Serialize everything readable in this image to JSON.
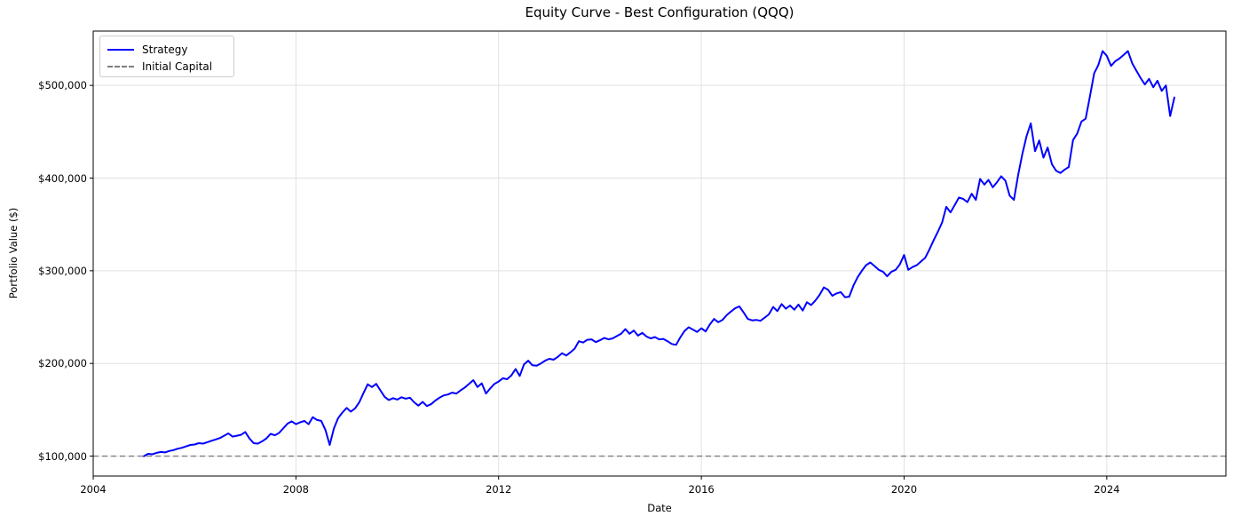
{
  "figure_title": "Equity Curve - Best Configuration (QQQ)",
  "colors": {
    "strategy_line": "#0000ff",
    "initial_capital_line": "#7f7f7f",
    "grid": "#e1e1e1",
    "spine": "#000000",
    "background": "#ffffff",
    "text": "#000000"
  },
  "chart_data": {
    "type": "line",
    "title": "Equity Curve - Best Configuration (QQQ)",
    "xlabel": "Date",
    "ylabel": "Portfolio Value ($)",
    "xlim": [
      2004.0,
      2026.35
    ],
    "ylim": [
      78500,
      558600
    ],
    "grid": true,
    "legend": {
      "position": "upper left",
      "entries": [
        {
          "label": "Strategy",
          "color": "#0000ff",
          "style": "solid"
        },
        {
          "label": "Initial Capital",
          "color": "#7f7f7f",
          "style": "dashed"
        }
      ]
    },
    "xticks": {
      "values": [
        2004,
        2008,
        2012,
        2016,
        2020,
        2024
      ],
      "labels": [
        "2004",
        "2008",
        "2012",
        "2016",
        "2020",
        "2024"
      ]
    },
    "yticks": {
      "values": [
        100000,
        200000,
        300000,
        400000,
        500000
      ],
      "labels": [
        "$100,000",
        "$200,000",
        "$300,000",
        "$400,000",
        "$500,000"
      ]
    },
    "initial_capital": 100000,
    "series": [
      {
        "name": "Strategy",
        "color": "#0000ff",
        "x_start_year": 2005.0,
        "x_step_years": 0.0833333,
        "values_usd": [
          100000,
          102500,
          102000,
          103500,
          104500,
          104000,
          105500,
          106500,
          108000,
          109000,
          110500,
          112000,
          112500,
          114000,
          113500,
          115000,
          116500,
          118000,
          119500,
          122000,
          124500,
          121000,
          122000,
          123000,
          126000,
          119000,
          114000,
          113500,
          116000,
          119000,
          124000,
          122500,
          125000,
          130000,
          135000,
          137500,
          134500,
          136500,
          138000,
          134500,
          142000,
          139000,
          138000,
          128000,
          112000,
          130000,
          141000,
          147000,
          152000,
          148000,
          151500,
          158000,
          168000,
          177500,
          174500,
          178000,
          171000,
          164000,
          160500,
          162500,
          161000,
          163500,
          162000,
          163000,
          158000,
          154500,
          158500,
          154000,
          156000,
          160000,
          163000,
          165500,
          166500,
          168500,
          167500,
          171000,
          174000,
          178000,
          182000,
          174500,
          178500,
          167500,
          173000,
          178000,
          180500,
          184000,
          183000,
          187000,
          194000,
          186500,
          199000,
          203000,
          198000,
          197500,
          200000,
          203000,
          205000,
          204000,
          207000,
          211000,
          208500,
          212000,
          216000,
          224000,
          222500,
          225500,
          226000,
          223000,
          225000,
          227500,
          226000,
          227000,
          229500,
          232000,
          237000,
          232000,
          235500,
          230000,
          233000,
          229000,
          227000,
          228500,
          226000,
          226500,
          224000,
          221000,
          220000,
          228000,
          235000,
          239000,
          236500,
          234000,
          238000,
          234500,
          242000,
          248000,
          244500,
          247000,
          252000,
          256000,
          259500,
          261500,
          255000,
          248000,
          246500,
          247000,
          246000,
          249500,
          253000,
          261000,
          256500,
          264000,
          259000,
          262500,
          258000,
          263500,
          257000,
          266000,
          263000,
          268000,
          274000,
          282000,
          279500,
          273000,
          275500,
          277000,
          271500,
          272000,
          284000,
          293000,
          300000,
          306000,
          309000,
          305000,
          301000,
          299000,
          294000,
          299000,
          301000,
          307000,
          317000,
          301000,
          304000,
          306000,
          310000,
          314000,
          323000,
          333000,
          342000,
          352000,
          369000,
          363000,
          371000,
          379000,
          377500,
          374000,
          383000,
          376500,
          399000,
          393000,
          398000,
          390000,
          395500,
          402000,
          397000,
          381000,
          376500,
          403000,
          426000,
          445000,
          459000,
          429000,
          440500,
          422000,
          433000,
          415000,
          408000,
          405500,
          409000,
          412000,
          441000,
          448000,
          461000,
          464000,
          488000,
          513000,
          522000,
          537000,
          532000,
          521000,
          526000,
          529000,
          533000,
          537000,
          524000,
          516000,
          508000,
          501000,
          507000,
          498000,
          505000,
          494000,
          500000,
          467000,
          487000
        ]
      }
    ]
  }
}
